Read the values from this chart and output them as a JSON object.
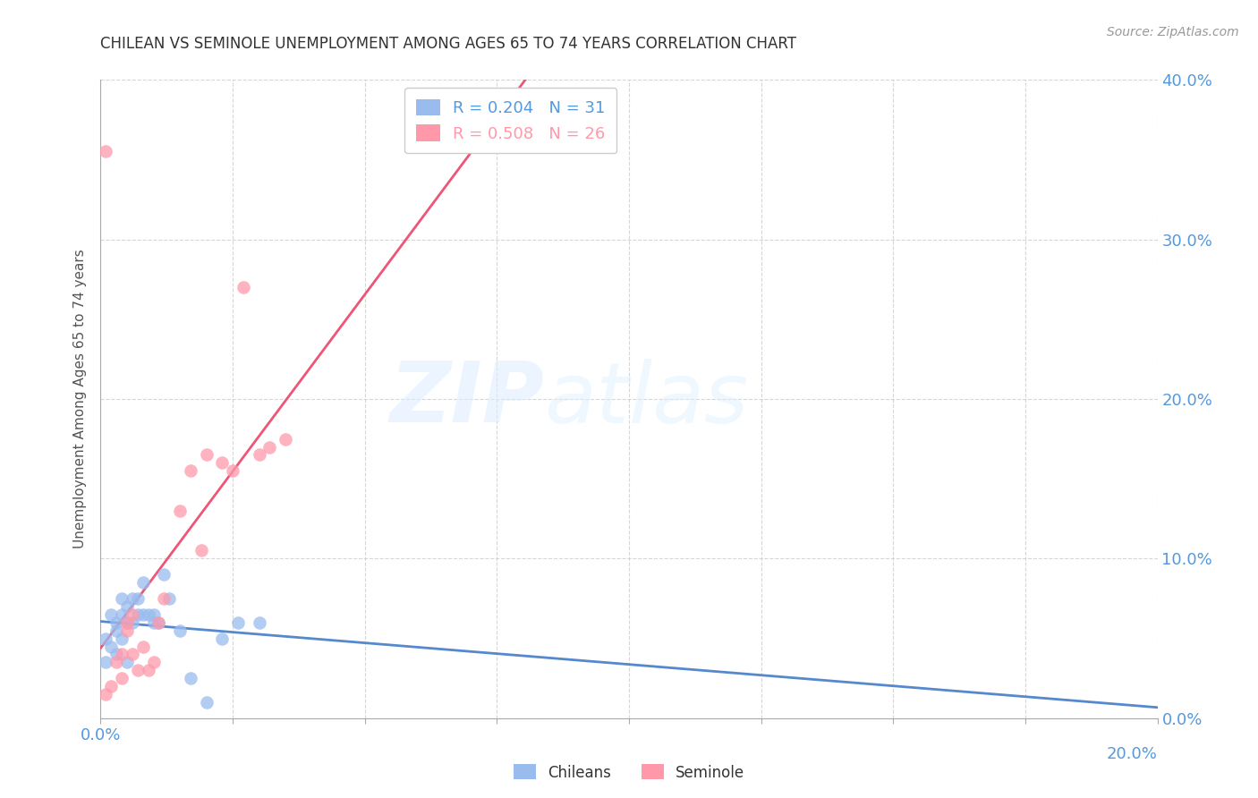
{
  "title": "CHILEAN VS SEMINOLE UNEMPLOYMENT AMONG AGES 65 TO 74 YEARS CORRELATION CHART",
  "source": "Source: ZipAtlas.com",
  "ylabel": "Unemployment Among Ages 65 to 74 years",
  "watermark_text": "ZIP",
  "watermark_text2": "atlas",
  "xlim": [
    0.0,
    0.2
  ],
  "ylim": [
    0.0,
    0.4
  ],
  "xticks": [
    0.0,
    0.025,
    0.05,
    0.075,
    0.1,
    0.125,
    0.15,
    0.175,
    0.2
  ],
  "yticks": [
    0.0,
    0.1,
    0.2,
    0.3,
    0.4
  ],
  "chileans_R": 0.204,
  "chileans_N": 31,
  "seminole_R": 0.508,
  "seminole_N": 26,
  "chileans_color": "#99BBEE",
  "seminole_color": "#FF99AA",
  "trendline_chilean_color": "#5588CC",
  "trendline_seminole_color": "#EE5577",
  "tick_label_color": "#5599DD",
  "title_color": "#333333",
  "grid_color": "#CCCCCC",
  "chileans_x": [
    0.001,
    0.001,
    0.002,
    0.002,
    0.003,
    0.003,
    0.003,
    0.004,
    0.004,
    0.004,
    0.005,
    0.005,
    0.005,
    0.006,
    0.006,
    0.007,
    0.007,
    0.008,
    0.008,
    0.009,
    0.01,
    0.01,
    0.011,
    0.012,
    0.013,
    0.015,
    0.017,
    0.02,
    0.023,
    0.026,
    0.03
  ],
  "chileans_y": [
    0.05,
    0.035,
    0.065,
    0.045,
    0.06,
    0.055,
    0.04,
    0.075,
    0.065,
    0.05,
    0.07,
    0.06,
    0.035,
    0.075,
    0.06,
    0.065,
    0.075,
    0.065,
    0.085,
    0.065,
    0.065,
    0.06,
    0.06,
    0.09,
    0.075,
    0.055,
    0.025,
    0.01,
    0.05,
    0.06,
    0.06
  ],
  "seminole_x": [
    0.001,
    0.001,
    0.002,
    0.003,
    0.004,
    0.004,
    0.005,
    0.005,
    0.006,
    0.006,
    0.007,
    0.008,
    0.009,
    0.01,
    0.011,
    0.012,
    0.015,
    0.017,
    0.019,
    0.02,
    0.023,
    0.025,
    0.027,
    0.03,
    0.032,
    0.035
  ],
  "seminole_y": [
    0.015,
    0.355,
    0.02,
    0.035,
    0.04,
    0.025,
    0.055,
    0.06,
    0.065,
    0.04,
    0.03,
    0.045,
    0.03,
    0.035,
    0.06,
    0.075,
    0.13,
    0.155,
    0.105,
    0.165,
    0.16,
    0.155,
    0.27,
    0.165,
    0.17,
    0.175
  ]
}
